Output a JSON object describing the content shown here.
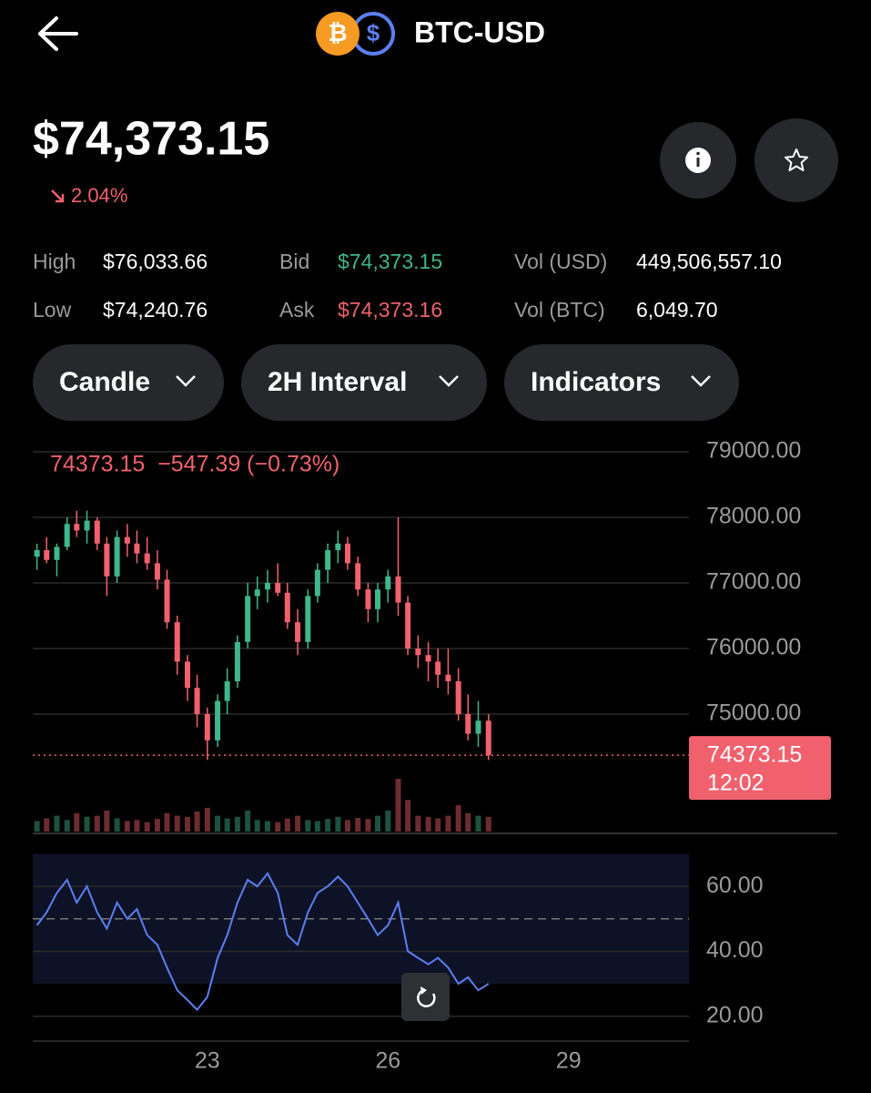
{
  "header": {
    "title": "BTC-USD",
    "base_icon": "₿",
    "quote_icon": "$"
  },
  "price": "$74,373.15",
  "change": "2.04%",
  "stats": [
    {
      "label": "High",
      "value": "$76,033.66"
    },
    {
      "label": "Low",
      "value": "$74,240.76"
    },
    {
      "label": "Bid",
      "value": "$74,373.15"
    },
    {
      "label": "Ask",
      "value": "$74,373.16"
    },
    {
      "label": "Vol (USD)",
      "value": "449,506,557.10"
    },
    {
      "label": "Vol (BTC)",
      "value": "6,049.70"
    }
  ],
  "controls": [
    "Candle",
    "2H Interval",
    "Indicators"
  ],
  "chart_data": {
    "type": "candlestick",
    "info": "74373.15  −547.39 (−0.73%)",
    "last_price": 74373.15,
    "last_price_label": "74373.15",
    "countdown": "12:02",
    "up_color": "#3fb68b",
    "down_color": "#f0616d",
    "rsi_color": "#5b7ff0",
    "x": [
      20.17,
      20.33,
      20.5,
      20.67,
      20.83,
      21.0,
      21.17,
      21.33,
      21.5,
      21.67,
      21.83,
      22.0,
      22.17,
      22.33,
      22.5,
      22.67,
      22.83,
      23.0,
      23.17,
      23.33,
      23.5,
      23.67,
      23.83,
      24.0,
      24.17,
      24.33,
      24.5,
      24.67,
      24.83,
      25.0,
      25.17,
      25.33,
      25.5,
      25.67,
      25.83,
      26.0,
      26.17,
      26.33,
      26.5,
      26.67,
      26.83,
      27.0,
      27.17,
      27.33,
      27.5,
      27.67
    ],
    "open": [
      77400,
      77500,
      77350,
      77550,
      77900,
      77800,
      77950,
      77600,
      77100,
      77700,
      77600,
      77450,
      77300,
      77050,
      76400,
      75800,
      75400,
      75000,
      74600,
      75200,
      75500,
      76100,
      76800,
      76900,
      77000,
      76850,
      76400,
      76100,
      76800,
      77200,
      77500,
      77600,
      77300,
      76900,
      76600,
      76900,
      77100,
      76700,
      76000,
      75900,
      75800,
      75600,
      75500,
      75000,
      74700,
      74900
    ],
    "high": [
      77600,
      77700,
      77600,
      78000,
      78100,
      78100,
      78000,
      77700,
      77800,
      77900,
      77800,
      77700,
      77500,
      77200,
      76500,
      75900,
      75600,
      75100,
      75300,
      75700,
      76200,
      77000,
      77100,
      77200,
      77300,
      77000,
      76600,
      76900,
      77300,
      77600,
      77800,
      77700,
      77400,
      77000,
      77000,
      77200,
      78000,
      76800,
      76200,
      76100,
      76000,
      76000,
      75700,
      75300,
      75200,
      75000
    ],
    "low": [
      77200,
      77300,
      77100,
      77500,
      77700,
      77600,
      77500,
      76800,
      77000,
      77400,
      77300,
      77200,
      76900,
      76300,
      75600,
      75200,
      74800,
      74300,
      74500,
      75000,
      75400,
      76000,
      76600,
      76700,
      76800,
      76300,
      75900,
      76000,
      76700,
      77000,
      77300,
      77200,
      76800,
      76400,
      76400,
      76700,
      76500,
      75900,
      75700,
      75500,
      75400,
      75300,
      74900,
      74600,
      74500,
      74300
    ],
    "close": [
      77500,
      77350,
      77550,
      77900,
      77800,
      77950,
      77600,
      77100,
      77700,
      77600,
      77450,
      77300,
      77050,
      76400,
      75800,
      75400,
      75000,
      74600,
      75200,
      75500,
      76100,
      76800,
      76900,
      77000,
      76850,
      76400,
      76100,
      76800,
      77200,
      77500,
      77600,
      77300,
      76900,
      76600,
      76900,
      77100,
      76700,
      76000,
      75900,
      75800,
      75600,
      75500,
      75000,
      74700,
      74900,
      74373.15
    ],
    "volume": [
      20,
      25,
      30,
      22,
      35,
      28,
      30,
      40,
      25,
      20,
      22,
      18,
      24,
      35,
      30,
      28,
      38,
      45,
      30,
      25,
      28,
      40,
      22,
      20,
      18,
      25,
      30,
      22,
      20,
      24,
      28,
      22,
      26,
      24,
      30,
      40,
      100,
      60,
      30,
      28,
      25,
      30,
      50,
      35,
      30,
      28
    ],
    "rsi": [
      48,
      52,
      58,
      62,
      55,
      60,
      52,
      47,
      55,
      50,
      53,
      45,
      42,
      35,
      28,
      25,
      22,
      26,
      38,
      45,
      55,
      62,
      60,
      64,
      58,
      45,
      42,
      52,
      58,
      60,
      63,
      60,
      55,
      50,
      45,
      48,
      55,
      40,
      38,
      36,
      38,
      35,
      30,
      32,
      28,
      30
    ],
    "xlim": [
      20.1,
      31
    ],
    "xticks": [
      23,
      26,
      29
    ],
    "ylim": [
      73800,
      79200
    ],
    "yticks": [
      {
        "value": 75000,
        "label": "75000.00"
      },
      {
        "value": 76000,
        "label": "76000.00"
      },
      {
        "value": 77000,
        "label": "77000.00"
      },
      {
        "value": 78000,
        "label": "78000.00"
      },
      {
        "value": 79000,
        "label": "79000.00"
      }
    ],
    "volume_ylim": [
      0,
      100
    ],
    "rsi_ylim": [
      16,
      73
    ],
    "rsi_yticks": [
      {
        "value": 20,
        "label": "20.00"
      },
      {
        "value": 40,
        "label": "40.00"
      },
      {
        "value": 60,
        "label": "60.00"
      }
    ],
    "rsi_band": [
      30,
      70
    ],
    "rsi_midline": 50,
    "grid": true
  }
}
